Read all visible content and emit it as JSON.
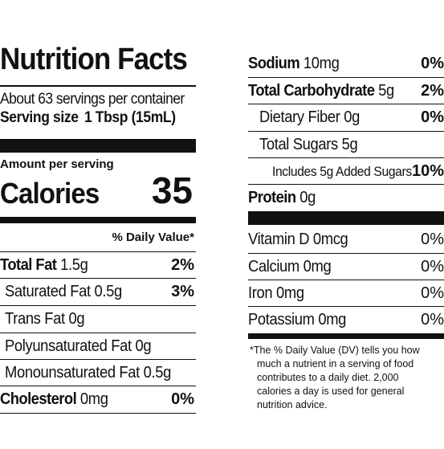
{
  "label_left": {
    "title": "Nutrition Facts",
    "servings_per_container": "About 63 servings per container",
    "serving_size_label": "Serving size",
    "serving_size_value": "1 Tbsp (15mL)",
    "amount_per_serving": "Amount per serving",
    "calories_label": "Calories",
    "calories_value": "35",
    "daily_value_header": "% Daily Value*",
    "rows": [
      {
        "label": "Total Fat",
        "amount": "1.5g",
        "dv": "2%"
      },
      {
        "label": "Saturated Fat",
        "amount": "0.5g",
        "dv": "3%"
      },
      {
        "label": "Trans Fat",
        "amount": "0g",
        "dv": ""
      },
      {
        "label": "Polyunsaturated Fat",
        "amount": "0g",
        "dv": ""
      },
      {
        "label": "Monounsaturated Fat",
        "amount": "0.5g",
        "dv": ""
      },
      {
        "label": "Cholesterol",
        "amount": "0mg",
        "dv": "0%"
      }
    ]
  },
  "label_right": {
    "rows": [
      {
        "label": "Sodium",
        "amount": "10mg",
        "dv": "0%"
      },
      {
        "label": "Total Carbohydrate",
        "amount": "5g",
        "dv": "2%"
      },
      {
        "label": "Dietary Fiber",
        "amount": "0g",
        "dv": "0%"
      },
      {
        "label": "Total Sugars",
        "amount": "5g",
        "dv": ""
      },
      {
        "label": "Includes 5g Added Sugars",
        "amount": "",
        "dv": "10%"
      },
      {
        "label": "Protein",
        "amount": "0g",
        "dv": ""
      }
    ],
    "vitamins": [
      {
        "label": "Vitamin D",
        "amount": "0mcg",
        "dv": "0%"
      },
      {
        "label": "Calcium",
        "amount": "0mg",
        "dv": "0%"
      },
      {
        "label": "Iron",
        "amount": "0mg",
        "dv": "0%"
      },
      {
        "label": "Potassium",
        "amount": "0mg",
        "dv": "0%"
      }
    ],
    "footnote_lines": [
      "*The % Daily Value (DV) tells you how",
      "much a nutrient in a serving of food",
      "contributes to a daily diet. 2,000",
      "calories a day is used for general",
      "nutrition advice."
    ]
  },
  "colors": {
    "ink": "#111111",
    "background": "#ffffff"
  }
}
